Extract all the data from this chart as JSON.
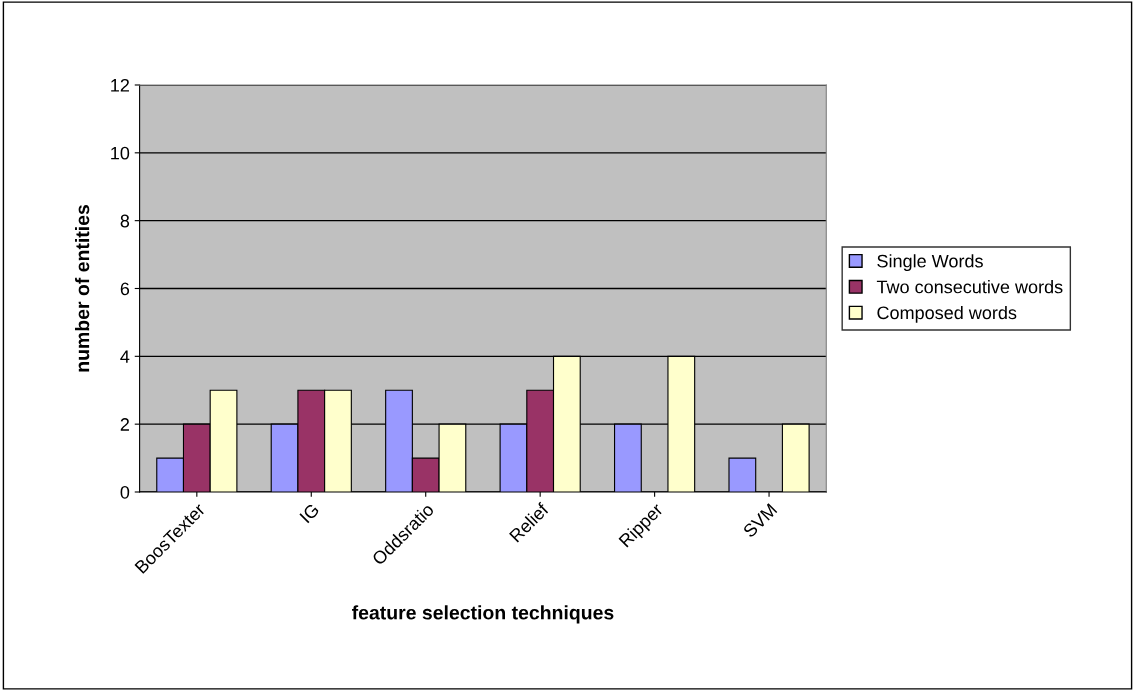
{
  "chart_data": {
    "type": "bar",
    "xlabel": "feature selection techniques",
    "ylabel": "number of entities",
    "categories": [
      "BoosTexter",
      "IG",
      "Oddsratio",
      "Relief",
      "Ripper",
      "SVM"
    ],
    "series": [
      {
        "name": "Single Words",
        "color": "#9999ff",
        "values": [
          1,
          2,
          3,
          2,
          2,
          1
        ]
      },
      {
        "name": "Two consecutive words",
        "color": "#993366",
        "values": [
          2,
          3,
          1,
          3,
          null,
          null
        ]
      },
      {
        "name": "Composed words",
        "color": "#ffffcc",
        "values": [
          3,
          3,
          2,
          4,
          4,
          2
        ]
      }
    ],
    "ylim": [
      0,
      12
    ],
    "yticks": [
      0,
      2,
      4,
      6,
      8,
      10,
      12
    ],
    "grid": "y",
    "legend": "right"
  }
}
